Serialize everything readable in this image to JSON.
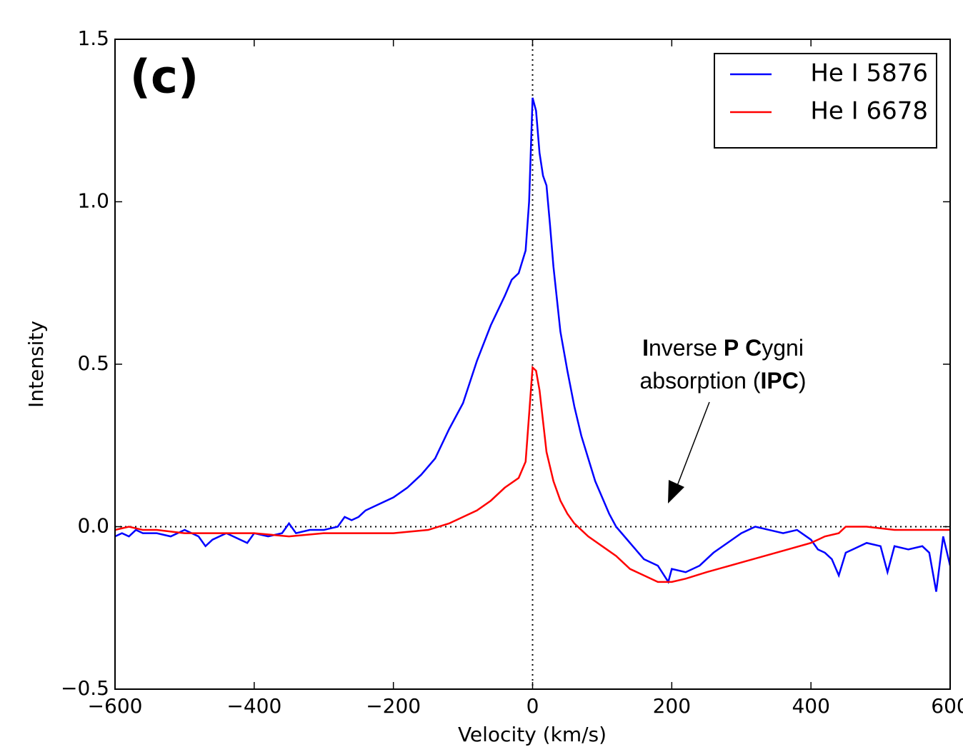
{
  "chart_data": {
    "type": "line",
    "panel_label": "(c)",
    "x_label": "Velocity (km/s)",
    "y_label": "Intensity",
    "xlim": [
      -600,
      600
    ],
    "ylim": [
      -0.5,
      1.5
    ],
    "xticks": [
      {
        "value": -600,
        "label": "−600"
      },
      {
        "value": -400,
        "label": "−400"
      },
      {
        "value": -200,
        "label": "−200"
      },
      0,
      200,
      400,
      600
    ],
    "yticks": [
      {
        "value": -0.5,
        "label": "−0.5"
      },
      {
        "value": 0,
        "label": "0.0"
      },
      0.5,
      {
        "value": 1,
        "label": "1.0"
      },
      1.5
    ],
    "reference_lines": {
      "x": [
        0
      ],
      "y": [
        0
      ]
    },
    "legend": "upper right",
    "annotation": [
      [
        {
          "text": "I",
          "bold": true
        },
        {
          "text": "nverse ",
          "bold": false
        },
        {
          "text": "P",
          "bold": true
        },
        {
          "text": " ",
          "bold": false
        },
        {
          "text": "C",
          "bold": true
        },
        {
          "text": "ygni",
          "bold": false
        }
      ],
      [
        {
          "text": "absorption (",
          "bold": false
        },
        {
          "text": "IPC",
          "bold": true
        },
        {
          "text": ")",
          "bold": false
        }
      ]
    ],
    "series": [
      {
        "name": "He I 5876",
        "color": "#0000ff",
        "x": [
          -600,
          -590,
          -580,
          -570,
          -560,
          -540,
          -520,
          -500,
          -480,
          -470,
          -460,
          -440,
          -420,
          -410,
          -400,
          -380,
          -360,
          -350,
          -340,
          -320,
          -300,
          -280,
          -270,
          -260,
          -250,
          -240,
          -220,
          -200,
          -180,
          -160,
          -140,
          -120,
          -100,
          -80,
          -60,
          -40,
          -30,
          -20,
          -10,
          -5,
          0,
          5,
          10,
          15,
          20,
          25,
          30,
          40,
          50,
          60,
          70,
          80,
          90,
          100,
          110,
          120,
          140,
          160,
          180,
          195,
          200,
          220,
          240,
          260,
          280,
          300,
          320,
          340,
          360,
          380,
          400,
          410,
          420,
          430,
          440,
          450,
          460,
          480,
          500,
          510,
          520,
          540,
          560,
          570,
          580,
          590,
          600
        ],
        "values": [
          -0.03,
          -0.02,
          -0.03,
          -0.01,
          -0.02,
          -0.02,
          -0.03,
          -0.01,
          -0.03,
          -0.06,
          -0.04,
          -0.02,
          -0.04,
          -0.05,
          -0.02,
          -0.03,
          -0.02,
          0.01,
          -0.02,
          -0.01,
          -0.01,
          0.0,
          0.03,
          0.02,
          0.03,
          0.05,
          0.07,
          0.09,
          0.12,
          0.16,
          0.21,
          0.3,
          0.38,
          0.51,
          0.62,
          0.71,
          0.76,
          0.78,
          0.85,
          1.0,
          1.32,
          1.28,
          1.15,
          1.08,
          1.05,
          0.93,
          0.8,
          0.6,
          0.48,
          0.37,
          0.28,
          0.21,
          0.14,
          0.09,
          0.04,
          0.0,
          -0.05,
          -0.1,
          -0.12,
          -0.17,
          -0.13,
          -0.14,
          -0.12,
          -0.08,
          -0.05,
          -0.02,
          0.0,
          -0.01,
          -0.02,
          -0.01,
          -0.04,
          -0.07,
          -0.08,
          -0.1,
          -0.15,
          -0.08,
          -0.07,
          -0.05,
          -0.06,
          -0.14,
          -0.06,
          -0.07,
          -0.06,
          -0.08,
          -0.2,
          -0.03,
          -0.12
        ]
      },
      {
        "name": "He I 6678",
        "color": "#ff0000",
        "x": [
          -600,
          -580,
          -560,
          -540,
          -500,
          -450,
          -400,
          -350,
          -300,
          -250,
          -200,
          -150,
          -120,
          -100,
          -80,
          -60,
          -40,
          -20,
          -10,
          0,
          5,
          10,
          20,
          30,
          40,
          50,
          60,
          70,
          80,
          100,
          120,
          140,
          160,
          180,
          200,
          220,
          250,
          300,
          350,
          400,
          420,
          440,
          450,
          480,
          520,
          560,
          600
        ],
        "values": [
          -0.01,
          0.0,
          -0.01,
          -0.01,
          -0.02,
          -0.02,
          -0.02,
          -0.03,
          -0.02,
          -0.02,
          -0.02,
          -0.01,
          0.01,
          0.03,
          0.05,
          0.08,
          0.12,
          0.15,
          0.2,
          0.49,
          0.48,
          0.42,
          0.23,
          0.14,
          0.08,
          0.04,
          0.01,
          -0.01,
          -0.03,
          -0.06,
          -0.09,
          -0.13,
          -0.15,
          -0.17,
          -0.17,
          -0.16,
          -0.14,
          -0.11,
          -0.08,
          -0.05,
          -0.03,
          -0.02,
          0.0,
          0.0,
          -0.01,
          -0.01,
          -0.01
        ]
      }
    ]
  }
}
